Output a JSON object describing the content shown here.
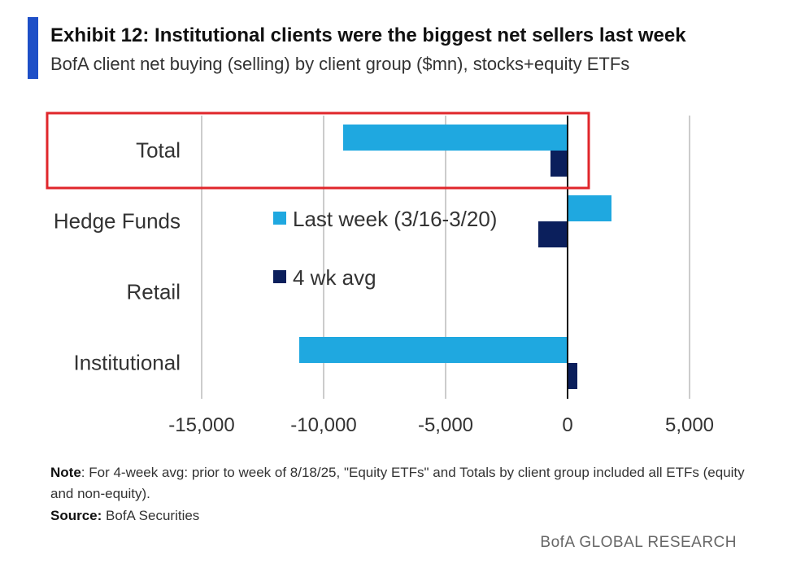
{
  "header": {
    "title": "Exhibit 12: Institutional clients were the biggest net sellers last week",
    "subtitle": "BofA client net buying (selling) by client group ($mn), stocks+equity ETFs"
  },
  "colors": {
    "accent": "#1e4fc7",
    "last_week": "#1fa8e0",
    "four_wk_avg": "#0b1f5c",
    "highlight_box": "#e0262b",
    "gridline": "#cccccc"
  },
  "chart_data": {
    "type": "bar",
    "orientation": "horizontal",
    "categories": [
      "Total",
      "Hedge Funds",
      "Retail",
      "Institutional"
    ],
    "series": [
      {
        "name": "Last week (3/16-3/20)",
        "values": [
          -9200,
          1800,
          0,
          -11000
        ]
      },
      {
        "name": "4 wk avg",
        "values": [
          -700,
          -1200,
          0,
          400
        ]
      }
    ],
    "x_ticks": [
      -15000,
      -10000,
      -5000,
      0,
      5000
    ],
    "x_tick_labels": [
      "-15,000",
      "-10,000",
      "-5,000",
      "0",
      "5,000"
    ],
    "xlim": [
      -15000,
      5000
    ],
    "grid": true,
    "legend_position": "center",
    "highlighted_category": "Total"
  },
  "footer": {
    "note_label": "Note",
    "note_text": ": For 4-week avg: prior to week of 8/18/25, \"Equity ETFs\" and Totals by client group included all ETFs (equity and non-equity).",
    "source_label": "Source:",
    "source_text": " BofA Securities",
    "brand": "BofA GLOBAL RESEARCH"
  }
}
